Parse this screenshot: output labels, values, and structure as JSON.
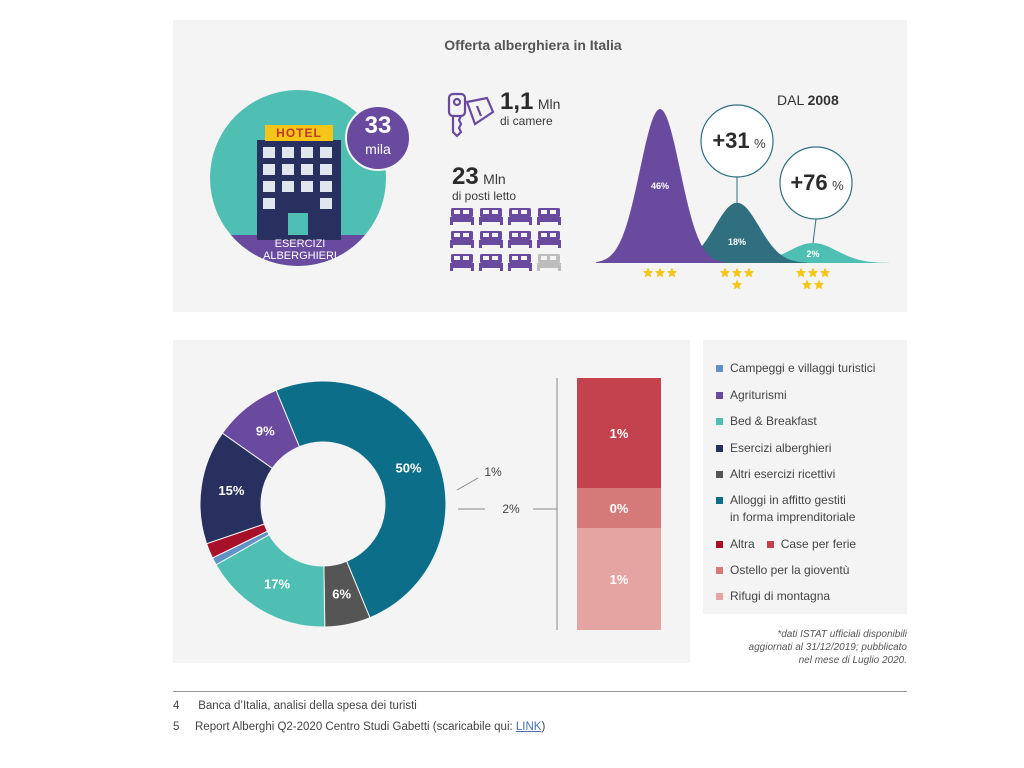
{
  "title": "Offerta alberghiera in Italia",
  "hotel": {
    "sign": "HOTEL",
    "count_value": "33",
    "count_unit": "mila",
    "label_line1": "ESERCIZI",
    "label_line2": "ALBERGHIERI"
  },
  "rooms": {
    "value": "1,1",
    "unit": "Mln",
    "label": "di camere"
  },
  "beds": {
    "value": "23",
    "unit": "Mln",
    "label": "di posti letto",
    "icons_total": 12,
    "icons_filled": 11
  },
  "since": {
    "prefix": "DAL",
    "year": "2008"
  },
  "growth": [
    {
      "label": "+31",
      "unit": "%"
    },
    {
      "label": "+76",
      "unit": "%"
    }
  ],
  "colors": {
    "purple": "#6a4a9e",
    "teal_dark": "#2f6f80",
    "teal": "#4fbfb3",
    "navy": "#27305e",
    "dark_teal": "#0d6e8a",
    "grey": "#555555",
    "blue": "#5f93c7",
    "red": "#a8102a",
    "case_ferie": "#c4424d",
    "ostello": "#d57a78",
    "rifugi": "#e3a4a2",
    "star": "#f5c518"
  },
  "chart_data": [
    {
      "type": "area",
      "title": "",
      "series": [
        {
          "label": "46%",
          "value": 46,
          "stars": 3,
          "color": "#6a4a9e"
        },
        {
          "label": "18%",
          "value": 18,
          "stars": 4,
          "color": "#2f6f80"
        },
        {
          "label": "2%",
          "value": 2,
          "stars": 5,
          "color": "#4fbfb3"
        }
      ]
    },
    {
      "type": "pie",
      "title": "",
      "slices": [
        {
          "name": "Alloggi in affitto gestiti in forma imprenditoriale",
          "value": 50,
          "label": "50%",
          "color": "#0d6e8a"
        },
        {
          "name": "Altri esercizi ricettivi",
          "value": 6,
          "label": "6%",
          "color": "#555555"
        },
        {
          "name": "Bed & Breakfast",
          "value": 17,
          "label": "17%",
          "color": "#4fbfb3"
        },
        {
          "name": "Campeggi e villaggi turistici",
          "value": 1,
          "label": "1%",
          "color": "#5f93c7"
        },
        {
          "name": "Altra",
          "value": 2,
          "label": "2%",
          "color": "#a8102a"
        },
        {
          "name": "Esercizi alberghieri",
          "value": 15,
          "label": "15%",
          "color": "#27305e"
        },
        {
          "name": "Agriturismi",
          "value": 9,
          "label": "9%",
          "color": "#6a4a9e"
        }
      ],
      "callouts": [
        "1%",
        "2%"
      ]
    },
    {
      "type": "bar",
      "title": "",
      "segments": [
        {
          "name": "Case per ferie",
          "label": "1%",
          "color": "#c4424d"
        },
        {
          "name": "Ostello per la gioventù",
          "label": "0%",
          "color": "#d57a78"
        },
        {
          "name": "Rifugi di montagna",
          "label": "1%",
          "color": "#e3a4a2"
        }
      ]
    }
  ],
  "legend": [
    {
      "label": "Campeggi e villaggi turistici",
      "color": "#5f93c7"
    },
    {
      "label": "Agriturismi",
      "color": "#6a4a9e"
    },
    {
      "label": "Bed & Breakfast",
      "color": "#4fbfb3"
    },
    {
      "label": "Esercizi alberghieri",
      "color": "#27305e"
    },
    {
      "label": "Altri esercizi ricettivi",
      "color": "#555555"
    },
    {
      "label": "Alloggi in affitto gestiti",
      "label2": "in forma imprenditoriale",
      "color": "#0d6e8a"
    },
    {
      "label": "Altra",
      "label2": "Case per ferie",
      "color": "#a8102a",
      "color2": "#c4424d"
    },
    {
      "label": "Ostello per la gioventù",
      "color": "#d57a78"
    },
    {
      "label": "Rifugi di montagna",
      "color": "#e3a4a2"
    }
  ],
  "note": {
    "line1": "*dati ISTAT ufficiali disponibili",
    "line2": "aggiornati al 31/12/2019; pubblicato",
    "line3": "nel mese di Luglio 2020."
  },
  "footnotes": [
    {
      "num": "4",
      "text": "Banca d’Italia, analisi della spesa dei turisti"
    },
    {
      "num": "5",
      "text": "Report Alberghi Q2-2020 Centro Studi Gabetti (scaricabile qui: ",
      "link": "LINK",
      "after": ")"
    }
  ]
}
